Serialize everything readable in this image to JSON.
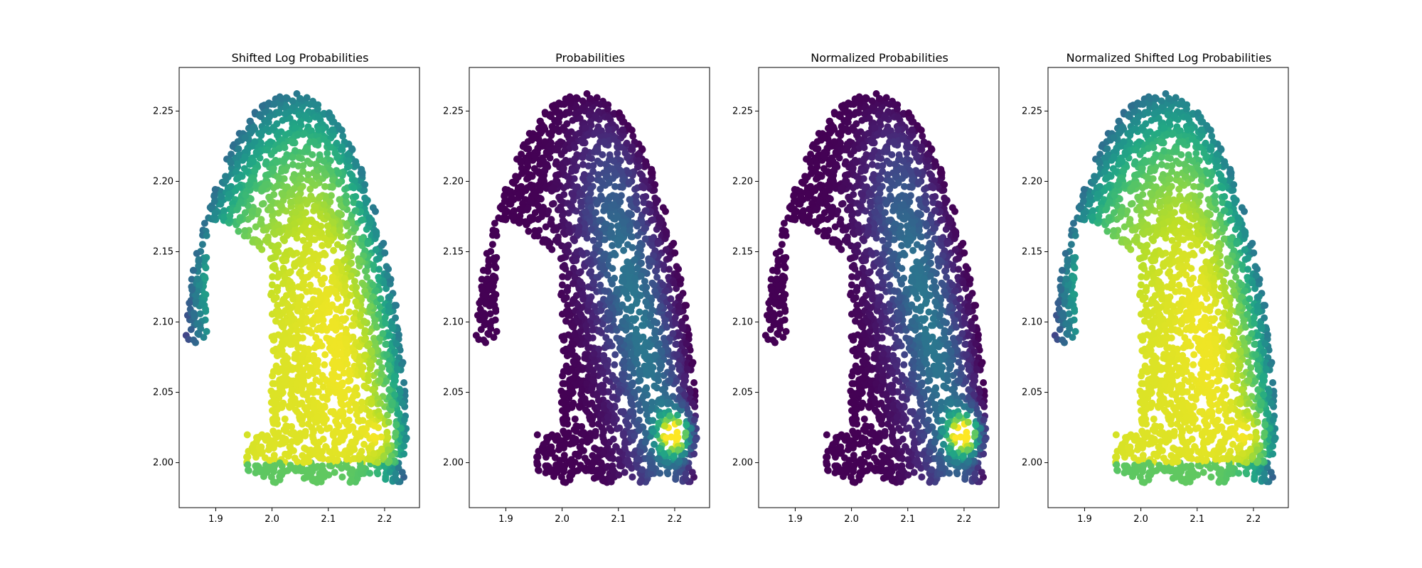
{
  "figure": {
    "background": "#ffffff"
  },
  "chart_data": [
    {
      "type": "scatter",
      "title": "Shifted Log Probabilities",
      "xlabel": "",
      "ylabel": "",
      "xlim": [
        1.835,
        2.262
      ],
      "ylim": [
        1.968,
        2.281
      ],
      "xticks": [
        1.9,
        2.0,
        2.1,
        2.2
      ],
      "xtick_labels": [
        "1.9",
        "2.0",
        "2.1",
        "2.2"
      ],
      "yticks": [
        2.0,
        2.05,
        2.1,
        2.15,
        2.2,
        2.25
      ],
      "ytick_labels": [
        "2.00",
        "2.05",
        "2.10",
        "2.15",
        "2.20",
        "2.25"
      ],
      "grid": false,
      "colormap": "viridis",
      "color_scheme": "shifted_log"
    },
    {
      "type": "scatter",
      "title": "Probabilities",
      "xlabel": "",
      "ylabel": "",
      "xlim": [
        1.835,
        2.262
      ],
      "ylim": [
        1.968,
        2.281
      ],
      "xticks": [
        1.9,
        2.0,
        2.1,
        2.2
      ],
      "xtick_labels": [
        "1.9",
        "2.0",
        "2.1",
        "2.2"
      ],
      "yticks": [
        2.0,
        2.05,
        2.1,
        2.15,
        2.2,
        2.25
      ],
      "ytick_labels": [
        "2.00",
        "2.05",
        "2.10",
        "2.15",
        "2.20",
        "2.25"
      ],
      "grid": false,
      "colormap": "viridis",
      "color_scheme": "probability"
    },
    {
      "type": "scatter",
      "title": "Normalized Probabilities",
      "xlabel": "",
      "ylabel": "",
      "xlim": [
        1.835,
        2.262
      ],
      "ylim": [
        1.968,
        2.281
      ],
      "xticks": [
        1.9,
        2.0,
        2.1,
        2.2
      ],
      "xtick_labels": [
        "1.9",
        "2.0",
        "2.1",
        "2.2"
      ],
      "yticks": [
        2.0,
        2.05,
        2.1,
        2.15,
        2.2,
        2.25
      ],
      "ytick_labels": [
        "2.00",
        "2.05",
        "2.10",
        "2.15",
        "2.20",
        "2.25"
      ],
      "grid": false,
      "colormap": "viridis",
      "color_scheme": "probability"
    },
    {
      "type": "scatter",
      "title": "Normalized Shifted Log Probabilities",
      "xlabel": "",
      "ylabel": "",
      "xlim": [
        1.835,
        2.262
      ],
      "ylim": [
        1.968,
        2.281
      ],
      "xticks": [
        1.9,
        2.0,
        2.1,
        2.2
      ],
      "xtick_labels": [
        "1.9",
        "2.0",
        "2.1",
        "2.2"
      ],
      "yticks": [
        2.0,
        2.05,
        2.1,
        2.15,
        2.2,
        2.25
      ],
      "ytick_labels": [
        "2.00",
        "2.05",
        "2.10",
        "2.15",
        "2.20",
        "2.25"
      ],
      "grid": false,
      "colormap": "viridis",
      "color_scheme": "shifted_log"
    }
  ],
  "point_cloud": {
    "arch_center": [
      2.035,
      2.0
    ],
    "arch_half_width_x": 0.205,
    "arch_peak_y": 2.263,
    "left_arm_bottom_y": 2.085,
    "inner_hole_top_y": 2.172,
    "inner_hole_x_range": [
      1.885,
      1.998
    ],
    "foot_x_range": [
      1.955,
      2.235
    ],
    "foot_bottom_y": 1.988,
    "bright_spot": [
      2.2,
      2.02
    ]
  }
}
